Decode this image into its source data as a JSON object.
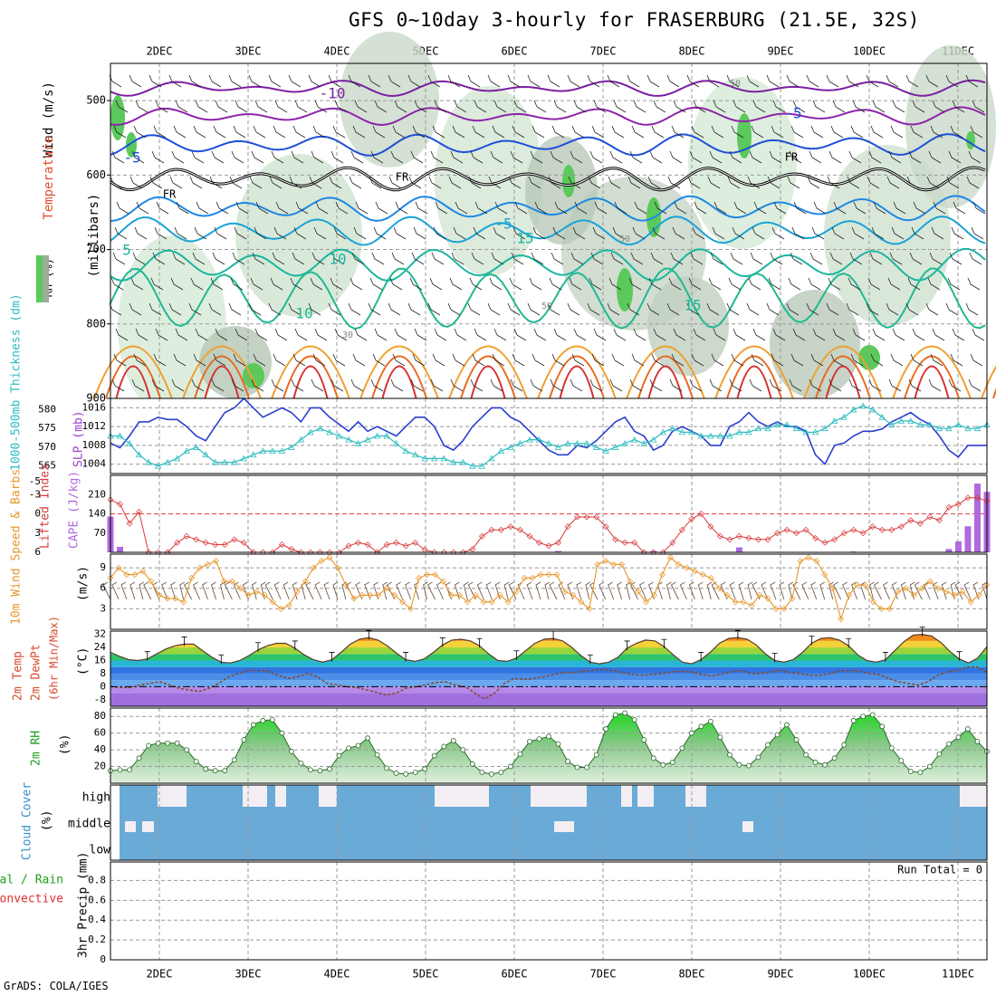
{
  "title": "GFS 0~10day 3-hourly for FRASERBURG (21.5E, 32S)",
  "credit": "GrADS: COLA/IGES",
  "date_labels": [
    "2DEC",
    "3DEC",
    "4DEC",
    "5DEC",
    "6DEC",
    "7DEC",
    "8DEC",
    "9DEC",
    "10DEC",
    "11DEC"
  ],
  "chart_data": [
    {
      "type": "heatmap",
      "name": "upper-air cross section",
      "ylabel": "(millibars)",
      "yticks": [
        500,
        600,
        700,
        800,
        900
      ],
      "ylim": [
        900,
        450
      ],
      "variables": [
        "RH (%)",
        "Temperature (°C)",
        "Wind (m/s)"
      ],
      "isotherm_labels": [
        "-10",
        "-5",
        "-5",
        "FR",
        "FR",
        "FR",
        "-5",
        "5",
        "10",
        "10",
        "15",
        "15"
      ],
      "rh_labels": [
        "50",
        "50",
        "50",
        "30"
      ],
      "freezing_level_label": "FR"
    },
    {
      "type": "line",
      "name": "thickness and SLP",
      "left_label": "1000-500mb Thickness (dm)",
      "left_ticks": [
        "580",
        "575",
        "570",
        "565"
      ],
      "right_label": "SLP (mb)",
      "right_ticks": [
        "1016",
        "1012",
        "1008",
        "1004"
      ],
      "series": [
        {
          "name": "SLP",
          "color": "#2a3fcf",
          "values": [
            1008.5,
            1007.5,
            1010,
            1013,
            1013,
            1014,
            1013.5,
            1013.5,
            1012,
            1010,
            1009,
            1012,
            1015,
            1016,
            1018,
            1016,
            1014,
            1015,
            1016,
            1015,
            1013,
            1016,
            1016,
            1014,
            1012.5,
            1011,
            1013,
            1011,
            1012,
            1011,
            1010,
            1012,
            1014,
            1014,
            1012,
            1008,
            1007,
            1009,
            1012,
            1014,
            1016,
            1016,
            1014,
            1013,
            1011,
            1009,
            1007,
            1006,
            1006,
            1008,
            1007.5,
            1009,
            1011,
            1013,
            1014,
            1011,
            1010,
            1007,
            1008,
            1011,
            1012,
            1011,
            1010,
            1008,
            1008,
            1012,
            1013,
            1015,
            1013,
            1012,
            1013,
            1012,
            1012,
            1011,
            1006,
            1004,
            1008,
            1008.5,
            1010,
            1011,
            1011,
            1011.5,
            1013,
            1014,
            1015,
            1013.5,
            1012.5,
            1010,
            1007,
            1005.5,
            1008,
            1008,
            1008
          ]
        },
        {
          "name": "1000-500mb Thickness",
          "color": "#2bbcc0",
          "values": [
            573,
            573,
            571,
            568,
            566,
            565,
            566,
            567,
            569,
            570,
            568,
            566,
            566,
            566,
            567,
            568,
            569,
            569,
            569,
            570,
            572,
            574,
            575,
            574,
            573,
            572,
            571,
            572,
            573,
            573,
            571,
            569,
            568,
            567,
            567,
            567,
            566,
            566,
            565,
            565,
            567,
            569,
            570,
            571,
            572,
            572,
            571,
            570,
            571,
            571,
            571,
            570,
            569,
            570,
            571,
            572,
            571,
            572,
            574,
            575,
            574,
            574,
            573,
            573,
            573,
            573,
            574,
            574,
            575,
            575,
            576,
            576,
            575,
            574,
            574,
            575,
            577,
            578,
            580,
            581,
            580,
            578,
            576,
            577,
            577,
            576,
            576,
            575,
            575,
            576,
            575,
            575,
            576
          ]
        }
      ]
    },
    {
      "type": "bar",
      "name": "lifted index and CAPE",
      "left_label": "Lifted Index",
      "left_ticks": [
        "-5",
        "-3",
        "0",
        "3",
        "6"
      ],
      "right_label": "CAPE (J/kg)",
      "right_ticks": [
        "210",
        "140",
        "70"
      ],
      "lifted_index": [
        -2.2,
        -1.5,
        1.5,
        -0.3,
        6,
        8,
        7,
        4.5,
        3.5,
        4,
        4.5,
        4.8,
        4.8,
        4,
        4.5,
        6,
        6,
        6,
        4.8,
        5.5,
        6,
        6.5,
        8,
        8,
        8,
        5,
        4.5,
        4.8,
        6,
        4.8,
        4.5,
        5,
        4.5,
        5.6,
        6,
        7,
        7,
        6.5,
        5.5,
        3.5,
        2.5,
        2.5,
        2,
        2.5,
        3.5,
        4.5,
        5,
        4.5,
        2,
        0.5,
        0.5,
        0.5,
        2,
        4,
        4.5,
        4.5,
        6,
        7.5,
        7.5,
        4.5,
        2.5,
        0.8,
        0,
        2,
        3.5,
        4,
        3.5,
        3.8,
        4,
        4,
        3,
        2.5,
        3,
        2.5,
        3.8,
        4.5,
        4,
        3,
        2.5,
        3,
        2,
        2.5,
        2.5,
        2,
        1,
        1.5,
        0.5,
        1,
        -1,
        -1.5,
        -2.5,
        -2.5,
        -2
      ],
      "cape_bars": [
        {
          "time_index": 0,
          "value": 130
        },
        {
          "time_index": 1,
          "value": 20
        },
        {
          "time_index": 47,
          "value": 5
        },
        {
          "time_index": 57,
          "value": 5
        },
        {
          "time_index": 66,
          "value": 18
        },
        {
          "time_index": 78,
          "value": 3
        },
        {
          "time_index": 88,
          "value": 12
        },
        {
          "time_index": 89,
          "value": 40
        },
        {
          "time_index": 90,
          "value": 95
        },
        {
          "time_index": 91,
          "value": 250
        },
        {
          "time_index": 92,
          "value": 220
        }
      ]
    },
    {
      "type": "line",
      "name": "10m wind speed and barbs",
      "left_label": "10m Wind Speed & Barbs",
      "ylabel": "(m/s)",
      "yticks": [
        "9",
        "6",
        "3"
      ],
      "ylim": [
        0,
        11
      ],
      "values": [
        7.5,
        9,
        8,
        8,
        8.5,
        7,
        5,
        4.5,
        4.5,
        4,
        7.5,
        9,
        9.5,
        10,
        7,
        7,
        6,
        5,
        5.5,
        5,
        4,
        3,
        3.5,
        5.5,
        7,
        9,
        10,
        10.5,
        9,
        6.5,
        4.5,
        5,
        5,
        5,
        6,
        5,
        4,
        3,
        7.5,
        8,
        8,
        7,
        5,
        5,
        4,
        5,
        4,
        4,
        5,
        4,
        5.5,
        7.5,
        7.5,
        8,
        8,
        8,
        5.5,
        5,
        4,
        3,
        9.5,
        10,
        9.5,
        9.5,
        7,
        5.5,
        4,
        5,
        8,
        10.5,
        9.5,
        9,
        8.5,
        8,
        7.5,
        6,
        5,
        4,
        4,
        3.5,
        5,
        4.5,
        3,
        3,
        4.5,
        10,
        10.5,
        10,
        8,
        6,
        1.5,
        5,
        6.5,
        6.5,
        4,
        3,
        3,
        5.5,
        6,
        5,
        6,
        7,
        6,
        5.5,
        5,
        5.5,
        4,
        5,
        6.5
      ]
    },
    {
      "type": "area",
      "name": "2m temperature and dewpoint",
      "left_label": "2m Temp 2m DewPt (6hr Min/Max)",
      "ylabel": "(°C)",
      "yticks": [
        "32",
        "24",
        "16",
        "8",
        "0",
        "-8"
      ],
      "ylim": [
        -12,
        34
      ],
      "temperature": [
        21,
        18.5,
        16.5,
        16,
        17,
        20,
        23,
        25,
        26,
        26,
        22,
        18,
        15,
        14.5,
        16,
        19,
        22.5,
        25,
        26.5,
        26.5,
        23.5,
        19.5,
        16.5,
        15,
        16.5,
        21,
        26,
        29,
        30,
        28.5,
        25,
        20.5,
        16.5,
        15.5,
        17,
        21,
        25.5,
        28.5,
        29,
        28,
        25,
        20,
        16,
        15.5,
        17.5,
        22,
        26.5,
        29,
        29.5,
        28,
        24,
        19,
        15,
        14,
        15,
        18,
        23.5,
        26.5,
        28.5,
        28,
        24.5,
        19.5,
        15,
        14,
        16.5,
        21,
        26.5,
        29.5,
        30,
        29,
        25.5,
        20,
        16,
        15,
        16.5,
        21,
        26.5,
        29.5,
        30,
        28.5,
        25,
        19.5,
        16,
        15,
        16.5,
        22,
        27.5,
        31.5,
        32,
        31,
        27,
        21.5,
        17,
        14.5,
        17.5,
        24.5
      ],
      "dewpoint": [
        0,
        -0.5,
        -0.5,
        1,
        2,
        3,
        1,
        -1,
        -2,
        -3,
        -1,
        2,
        6,
        8,
        10,
        10,
        9.5,
        7,
        5,
        6,
        8,
        6,
        2,
        1,
        0,
        -0.5,
        -2,
        -3.5,
        -5,
        -4,
        -1,
        0,
        1,
        2.5,
        3,
        1,
        0,
        -4,
        -7.5,
        -4,
        2,
        5,
        4.5,
        5,
        6,
        7.5,
        8.5,
        8.5,
        9.5,
        10,
        10.5,
        10,
        8.5,
        7.5,
        7,
        7.5,
        8,
        9,
        9.5,
        9,
        7.5,
        6.5,
        7.5,
        9,
        10,
        8,
        8,
        9,
        10,
        8.5,
        8,
        7,
        7,
        8,
        9.5,
        10,
        9.5,
        8,
        7.5,
        5,
        3,
        2,
        1,
        3,
        7,
        9,
        10,
        12,
        12,
        9
      ]
    },
    {
      "type": "area",
      "name": "2m relative humidity",
      "left_label": "2m RH",
      "ylabel": "(%)",
      "yticks": [
        "80",
        "60",
        "40",
        "20"
      ],
      "ylim": [
        0,
        90
      ],
      "values": [
        15,
        16,
        16,
        30,
        45,
        48,
        48,
        48,
        40,
        26,
        17,
        15,
        15,
        28,
        52,
        70,
        75,
        76,
        60,
        38,
        24,
        16,
        15,
        17,
        33,
        42,
        45,
        54,
        34,
        18,
        12,
        11,
        13,
        17,
        33,
        44,
        51,
        40,
        23,
        13,
        11,
        13,
        20,
        35,
        50,
        53,
        56,
        47,
        26,
        19,
        19,
        34,
        65,
        82,
        84,
        76,
        52,
        30,
        22,
        25,
        42,
        60,
        68,
        74,
        55,
        34,
        22,
        21,
        31,
        46,
        58,
        70,
        52,
        34,
        25,
        22,
        30,
        46,
        75,
        80,
        82,
        68,
        42,
        27,
        14,
        13,
        20,
        35,
        47,
        55,
        65,
        50,
        38
      ]
    },
    {
      "type": "table",
      "name": "cloud cover",
      "left_label": "Cloud Cover",
      "ylabel": "(%)",
      "rows": [
        "high",
        "middle",
        "low"
      ]
    },
    {
      "type": "bar",
      "name": "3hr precipitation",
      "left_label": "3hr Precip (mm)",
      "series_labels": [
        "Total / Rain",
        "Convective"
      ],
      "yticks": [
        "0.8",
        "0.6",
        "0.4",
        "0.2",
        "0"
      ],
      "ylim": [
        0,
        1
      ],
      "run_total": "Run Total = 0",
      "values": []
    }
  ]
}
